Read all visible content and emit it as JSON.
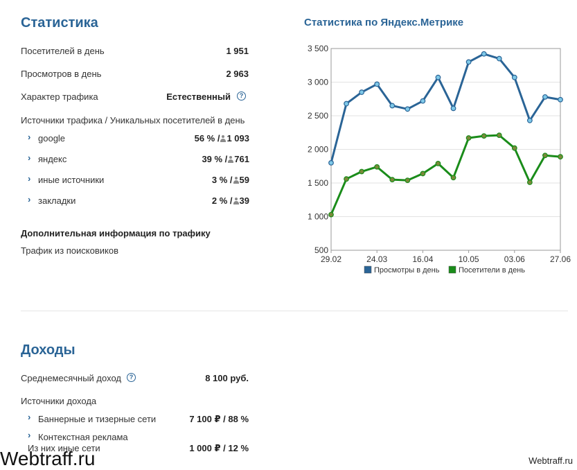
{
  "stats": {
    "title": "Статистика",
    "visitors_label": "Посетителей в день",
    "visitors_value": "1 951",
    "views_label": "Просмотров в день",
    "views_value": "2 963",
    "traffic_type_label": "Характер трафика",
    "traffic_type_value": "Естественный",
    "help_glyph": "?",
    "sources_title": "Источники трафика / Уникальных посетителей в день",
    "chevron": "›",
    "sources": [
      {
        "name": "google",
        "percent": "56 % /",
        "count": "1 093"
      },
      {
        "name": "яндекс",
        "percent": "39 % /",
        "count": "761"
      },
      {
        "name": "иные источники",
        "percent": "3 % /",
        "count": "59"
      },
      {
        "name": "закладки",
        "percent": "2 % /",
        "count": "39"
      }
    ],
    "extra_title": "Дополнительная информация по трафику",
    "extra_item": "Трафик из поисковиков"
  },
  "income": {
    "title": "Доходы",
    "monthly_label": "Среднемесячный доход",
    "monthly_value": "8 100 руб.",
    "sources_title": "Источники дохода",
    "items": [
      {
        "name": "Баннерные и тизерные сети",
        "value": "7 100 ₽  /  88 %"
      },
      {
        "name": "Контекстная реклама",
        "value": ""
      }
    ],
    "other_label": "Из них иные сети",
    "other_value": "1 000 ₽  /  12 %"
  },
  "watermark": {
    "left": "Webtraff.ru",
    "right": "Webtraff.ru"
  },
  "chart_title": "Статистика по Яндекс.Метрике",
  "chart_data": {
    "type": "line",
    "title": "Статистика по Яндекс.Метрике",
    "ylim": [
      500,
      3500
    ],
    "yticks": [
      500,
      1000,
      1500,
      2000,
      2500,
      3000,
      3500
    ],
    "ytick_labels": [
      "500",
      "1 000",
      "1 500",
      "2 000",
      "2 500",
      "3 000",
      "3 500"
    ],
    "xtick_labels": [
      "29.02",
      "24.03",
      "16.04",
      "10.05",
      "03.06",
      "27.06"
    ],
    "xtick_index": [
      0,
      3,
      6,
      9,
      12,
      15
    ],
    "point_count": 16,
    "grid": true,
    "legend": "bottom",
    "series": [
      {
        "name": "Просмотры в день",
        "color": "#2a6496",
        "marker": "#7ec8e8",
        "values": [
          1800,
          2680,
          2850,
          2970,
          2650,
          2600,
          2720,
          3070,
          2610,
          3300,
          3420,
          3350,
          3070,
          2430,
          2780,
          2740
        ]
      },
      {
        "name": "Посетители в день",
        "color": "#1a8c1a",
        "marker": "#7a8a3a",
        "values": [
          1030,
          1560,
          1670,
          1740,
          1550,
          1540,
          1640,
          1790,
          1580,
          2170,
          2200,
          2210,
          2020,
          1510,
          1910,
          1890
        ]
      }
    ]
  }
}
